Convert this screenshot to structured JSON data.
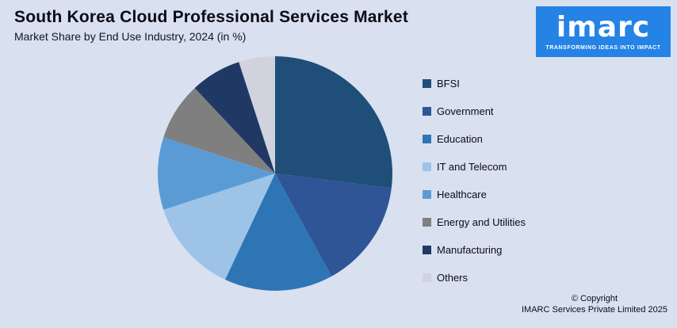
{
  "header": {
    "title": "South Korea Cloud Professional Services Market",
    "subtitle": "Market Share by End Use Industry, 2024 (in %)"
  },
  "logo": {
    "brand": "imarc",
    "tagline": "TRANSFORMING IDEAS INTO IMPACT",
    "bg_color": "#2583e6"
  },
  "chart_data": {
    "type": "pie",
    "title": "South Korea Cloud Professional Services Market",
    "subtitle": "Market Share by End Use Industry, 2024 (in %)",
    "categories": [
      "BFSI",
      "Government",
      "Education",
      "IT and Telecom",
      "Healthcare",
      "Energy and Utilities",
      "Manufacturing",
      "Others"
    ],
    "values": [
      27,
      15,
      15,
      13,
      10,
      8,
      7,
      5
    ],
    "colors": [
      "#1f4e79",
      "#2f5597",
      "#2e75b6",
      "#9dc3e6",
      "#5b9bd5",
      "#7f7f7f",
      "#203864",
      "#d0d3dd"
    ],
    "legend_position": "right",
    "start_angle_deg": 0,
    "direction": "clockwise",
    "values_note": "percent shares estimated from slice angles; no data labels shown in image"
  },
  "footer": {
    "copyright_line1": "© Copyright",
    "copyright_line2": "IMARC Services Private Limited 2025"
  }
}
